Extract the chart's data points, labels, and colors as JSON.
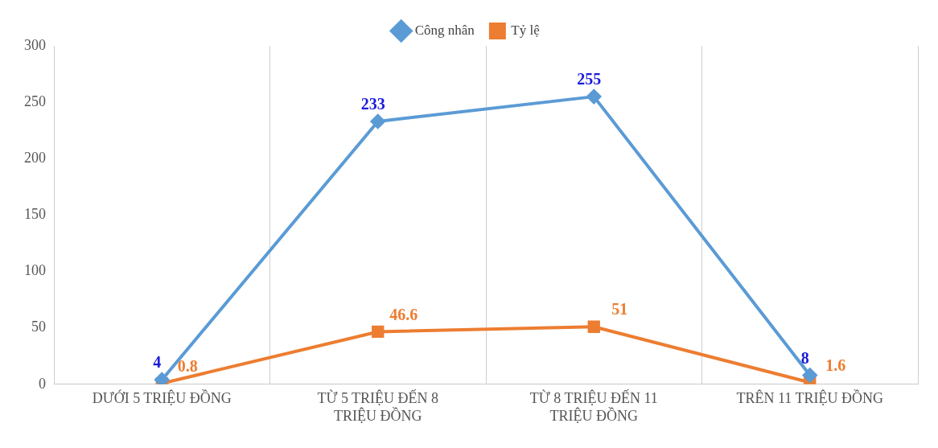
{
  "chart_data": {
    "type": "line",
    "categories": [
      "DƯỚI 5 TRIỆU ĐỒNG",
      "TỪ 5 TRIỆU ĐẾN 8 TRIỆU ĐỒNG",
      "TỪ 8 TRIỆU ĐẾN 11 TRIỆU ĐỒNG",
      "TRÊN 11 TRIỆU ĐỒNG"
    ],
    "series": [
      {
        "name": "Công nhân",
        "color": "#5b9bd5",
        "marker": "diamond",
        "values": [
          4,
          233,
          255,
          8
        ]
      },
      {
        "name": "Tỷ lệ",
        "color": "#ed7d31",
        "marker": "square",
        "values": [
          0.8,
          46.6,
          51,
          1.6
        ]
      }
    ],
    "ylim": [
      0,
      300
    ],
    "yticks": [
      0,
      50,
      100,
      150,
      200,
      250,
      300
    ],
    "grid": "x",
    "legend": "top",
    "data_labels": true
  }
}
